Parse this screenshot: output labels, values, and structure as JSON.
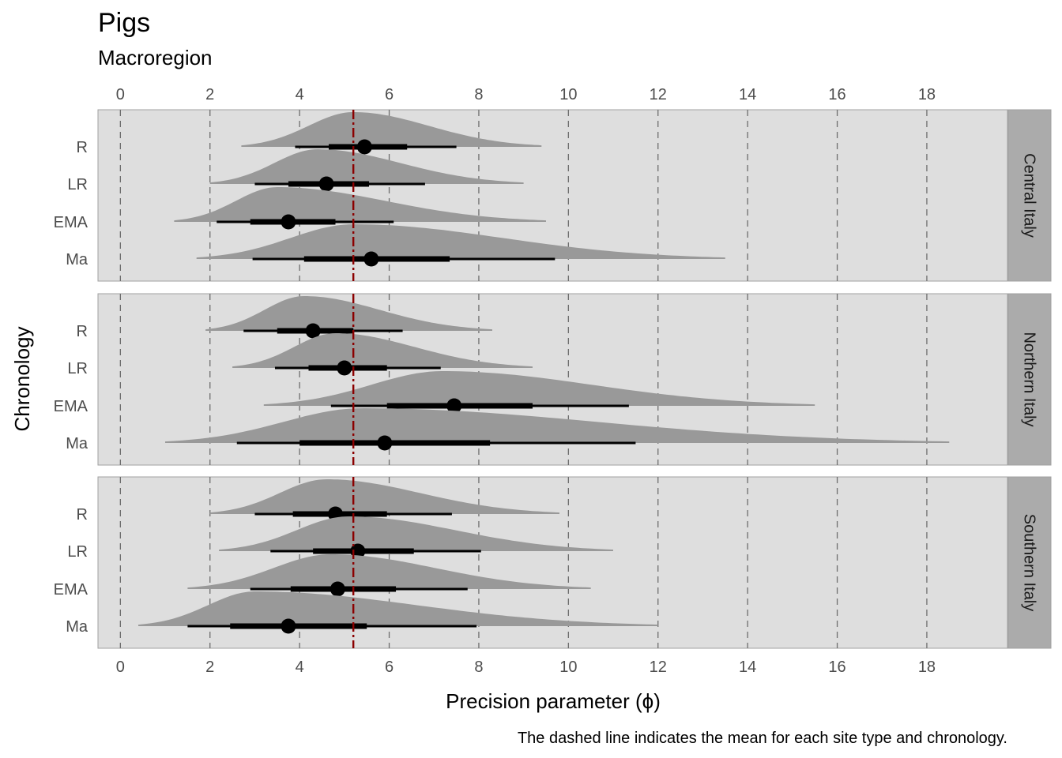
{
  "chart_data": {
    "type": "halfeye",
    "title": "Pigs",
    "subtitle": "Macroregion",
    "xlabel": "Precision parameter (ϕ)",
    "ylabel": "Chronology",
    "caption": "The dashed line indicates the mean for each site type and chronology.",
    "xlim": [
      -0.5,
      19.8
    ],
    "x_ticks": [
      "0",
      "2",
      "4",
      "6",
      "8",
      "10",
      "12",
      "14",
      "16",
      "18"
    ],
    "x_tick_values": [
      0,
      2,
      4,
      6,
      8,
      10,
      12,
      14,
      16,
      18
    ],
    "categories": [
      "R",
      "LR",
      "EMA",
      "Ma"
    ],
    "reference_line": 5.2,
    "reference_color": "#8b0000",
    "panel_background": "#dedede",
    "strip_background": "#ababab",
    "density_color": "#999999",
    "grid": "dashed vertical at ticks",
    "panels": [
      {
        "name": "Central Italy",
        "rows": [
          {
            "category": "R",
            "mean": 5.45,
            "i66": [
              4.65,
              6.4
            ],
            "i95": [
              3.9,
              7.5
            ],
            "range": [
              2.7,
              9.4
            ],
            "mode": 5.2
          },
          {
            "category": "LR",
            "mean": 4.6,
            "i66": [
              3.75,
              5.55
            ],
            "i95": [
              3.0,
              6.8
            ],
            "range": [
              2.0,
              9.0
            ],
            "mode": 4.4
          },
          {
            "category": "EMA",
            "mean": 3.75,
            "i66": [
              2.9,
              4.8
            ],
            "i95": [
              2.15,
              6.1
            ],
            "range": [
              1.2,
              9.5
            ],
            "mode": 3.5
          },
          {
            "category": "Ma",
            "mean": 5.6,
            "i66": [
              4.1,
              7.35
            ],
            "i95": [
              2.95,
              9.7
            ],
            "range": [
              1.7,
              13.5
            ],
            "mode": 5.2
          }
        ]
      },
      {
        "name": "Northern Italy",
        "rows": [
          {
            "category": "R",
            "mean": 4.3,
            "i66": [
              3.5,
              5.2
            ],
            "i95": [
              2.75,
              6.3
            ],
            "range": [
              1.9,
              8.3
            ],
            "mode": 4.1
          },
          {
            "category": "LR",
            "mean": 5.0,
            "i66": [
              4.2,
              5.95
            ],
            "i95": [
              3.45,
              7.15
            ],
            "range": [
              2.5,
              9.2
            ],
            "mode": 4.8
          },
          {
            "category": "EMA",
            "mean": 7.45,
            "i66": [
              5.95,
              9.2
            ],
            "i95": [
              4.7,
              11.35
            ],
            "range": [
              3.2,
              15.5
            ],
            "mode": 7.2
          },
          {
            "category": "Ma",
            "mean": 5.9,
            "i66": [
              4.0,
              8.25
            ],
            "i95": [
              2.6,
              11.5
            ],
            "range": [
              1.0,
              18.5
            ],
            "mode": 5.4
          }
        ]
      },
      {
        "name": "Southern Italy",
        "rows": [
          {
            "category": "R",
            "mean": 4.8,
            "i66": [
              3.85,
              5.95
            ],
            "i95": [
              3.0,
              7.4
            ],
            "range": [
              2.0,
              9.8
            ],
            "mode": 4.6
          },
          {
            "category": "LR",
            "mean": 5.3,
            "i66": [
              4.3,
              6.55
            ],
            "i95": [
              3.35,
              8.05
            ],
            "range": [
              2.2,
              11.0
            ],
            "mode": 5.1
          },
          {
            "category": "EMA",
            "mean": 4.85,
            "i66": [
              3.8,
              6.15
            ],
            "i95": [
              2.9,
              7.75
            ],
            "range": [
              1.5,
              10.5
            ],
            "mode": 4.7
          },
          {
            "category": "Ma",
            "mean": 3.75,
            "i66": [
              2.45,
              5.5
            ],
            "i95": [
              1.5,
              7.95
            ],
            "range": [
              0.4,
              12.0
            ],
            "mode": 3.0
          }
        ]
      }
    ]
  }
}
